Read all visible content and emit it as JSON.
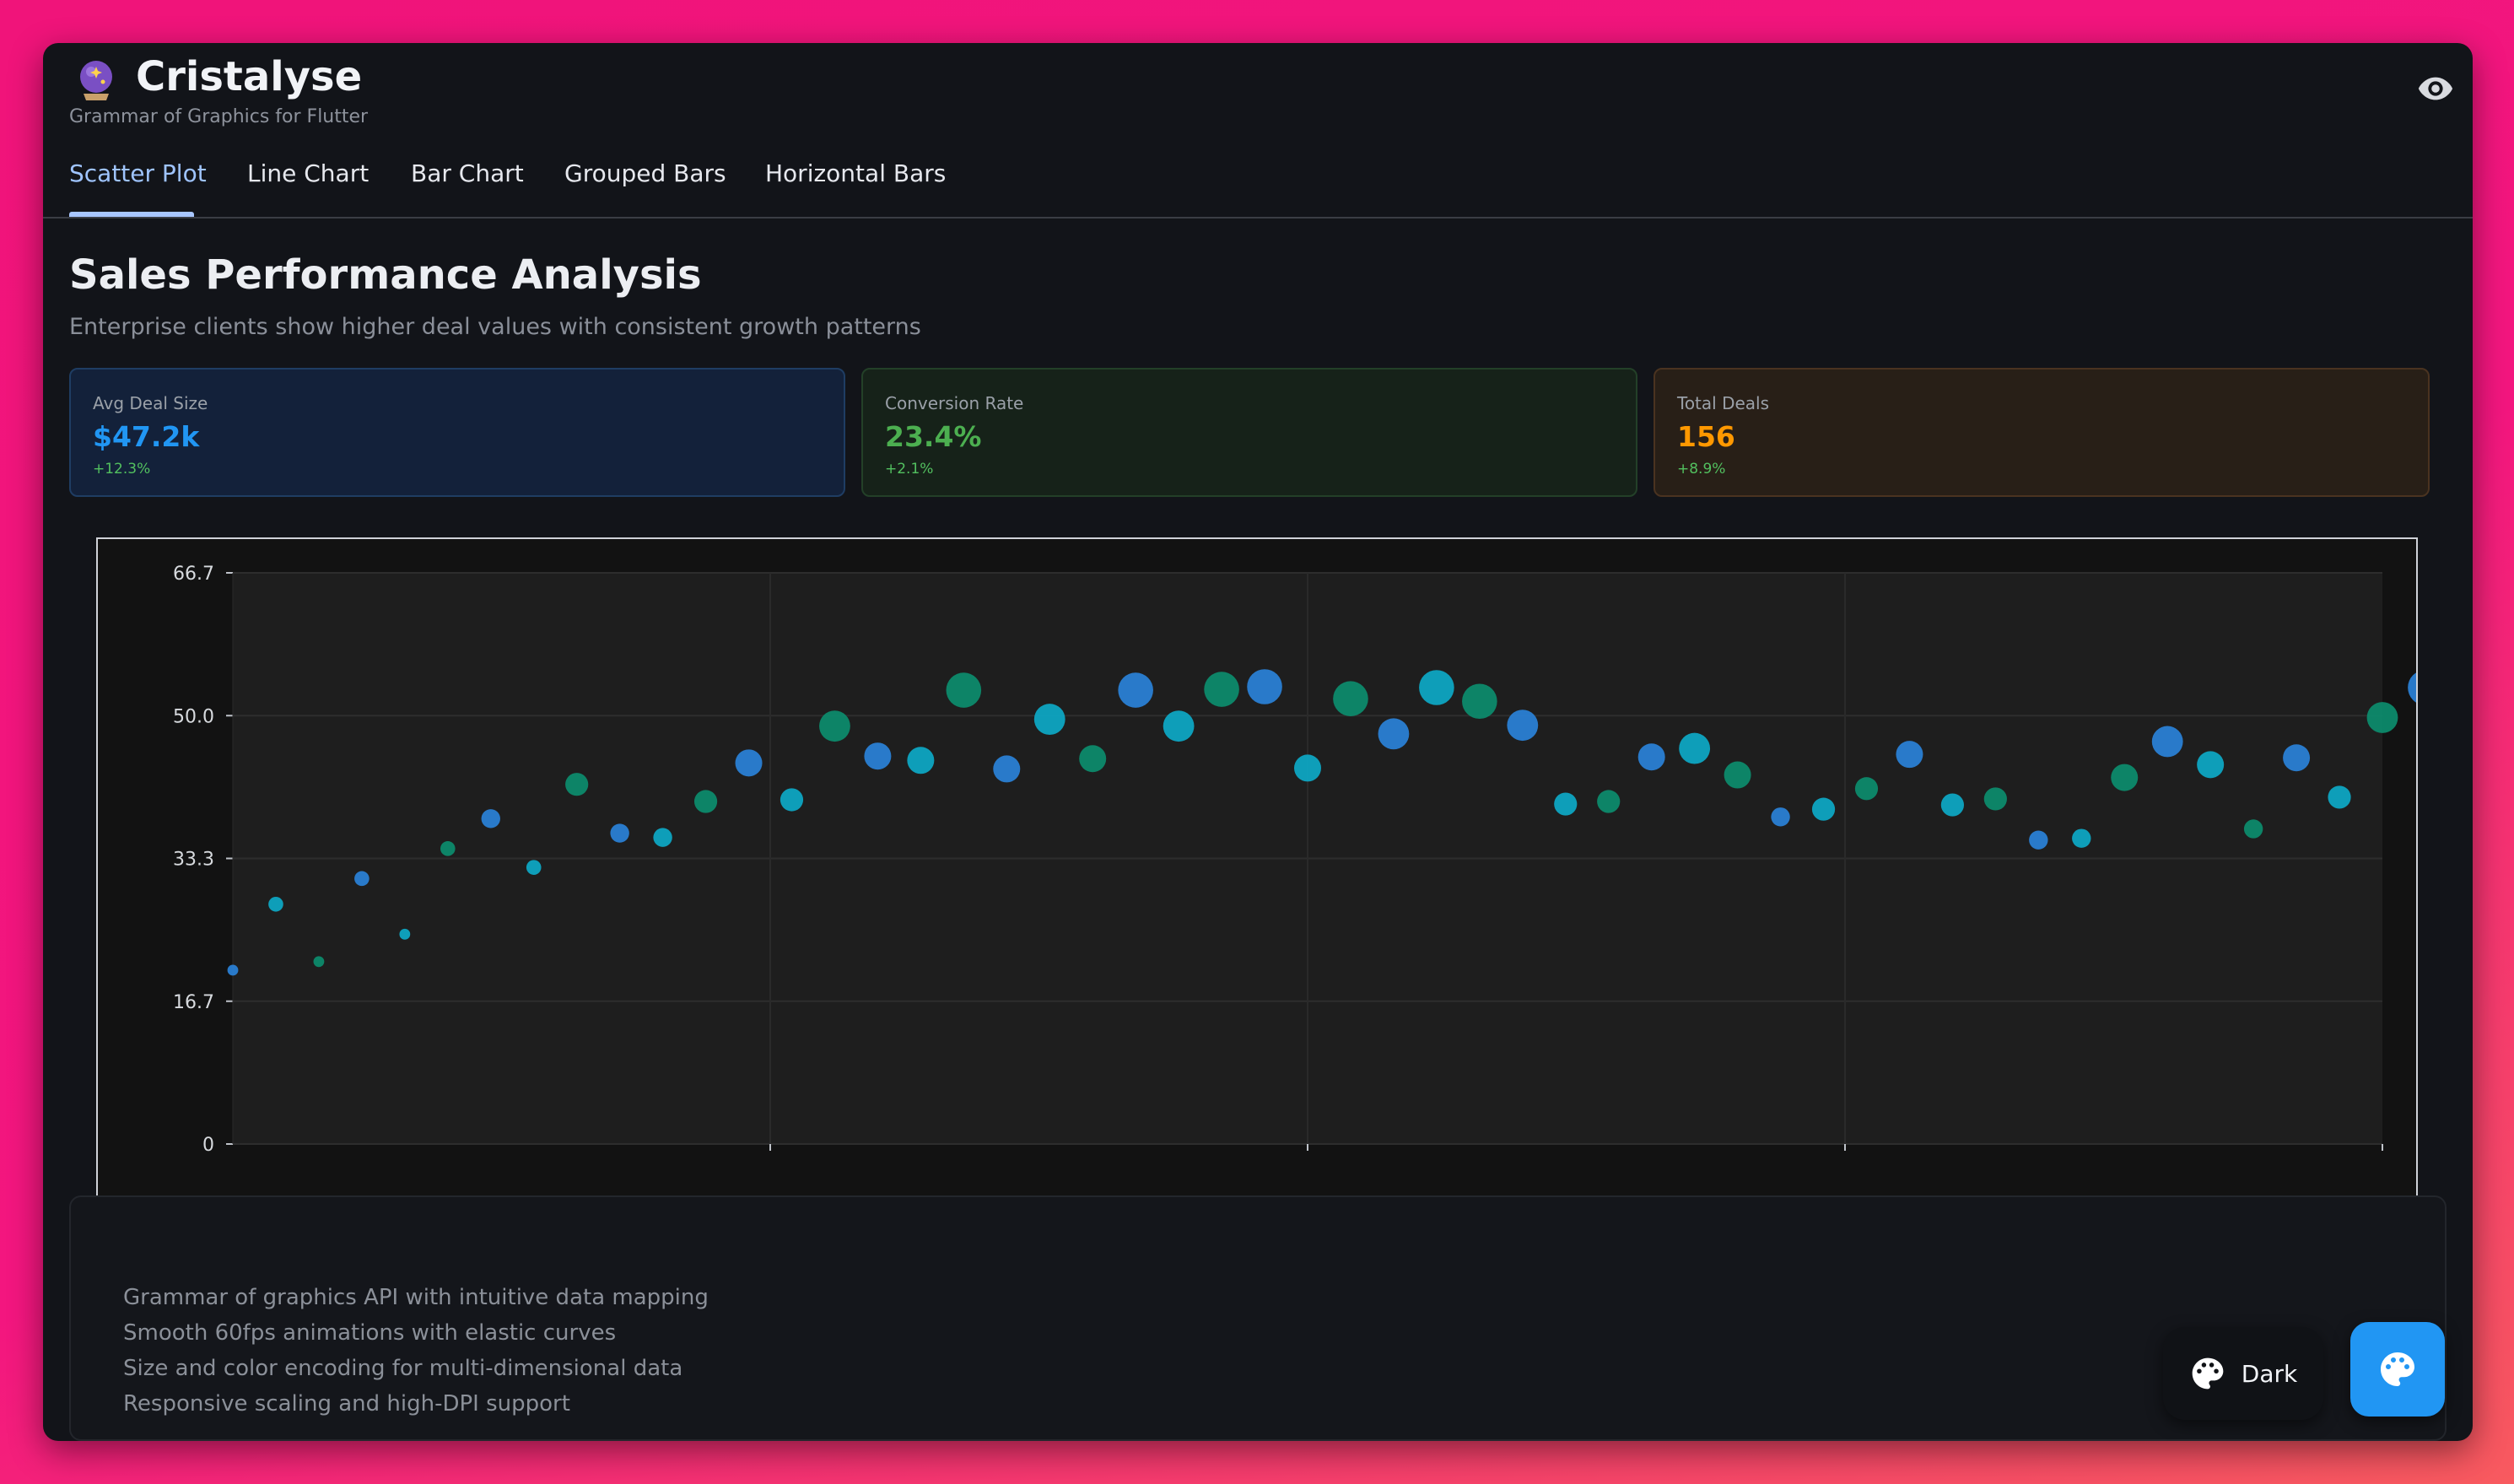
{
  "app": {
    "title": "Cristalyse",
    "subtitle": "Grammar of Graphics for Flutter",
    "icon": "crystal-ball-icon",
    "visibility_icon": "eye-icon"
  },
  "tabs": [
    {
      "label": "Scatter Plot",
      "active": true
    },
    {
      "label": "Line Chart",
      "active": false
    },
    {
      "label": "Bar Chart",
      "active": false
    },
    {
      "label": "Grouped Bars",
      "active": false
    },
    {
      "label": "Horizontal Bars",
      "active": false
    }
  ],
  "page": {
    "title": "Sales Performance Analysis",
    "subtitle": "Enterprise clients show higher deal values with consistent growth patterns"
  },
  "stats": [
    {
      "label": "Avg Deal Size",
      "value": "$47.2k",
      "change": "+12.3%",
      "color": "#2196f3"
    },
    {
      "label": "Conversion Rate",
      "value": "23.4%",
      "change": "+2.1%",
      "color": "#4caf50"
    },
    {
      "label": "Total Deals",
      "value": "156",
      "change": "+8.9%",
      "color": "#ff9800"
    }
  ],
  "chart_data": {
    "type": "scatter",
    "title": "",
    "xlabel": "",
    "ylabel": "",
    "ylim": [
      0,
      66.7
    ],
    "xlim": [
      0,
      50
    ],
    "yticks": [
      "66.7",
      "50.0",
      "33.3",
      "16.7",
      "0"
    ],
    "grid": true,
    "colors": {
      "blue": "#2a7fd4",
      "cyan": "#0ea5c2",
      "green": "#0d8a6c"
    },
    "points": [
      {
        "x": 0,
        "y": 20.3,
        "size": 1,
        "color": "blue"
      },
      {
        "x": 1,
        "y": 28,
        "size": 2,
        "color": "cyan"
      },
      {
        "x": 2,
        "y": 21.3,
        "size": 1,
        "color": "green"
      },
      {
        "x": 3,
        "y": 31,
        "size": 2,
        "color": "blue"
      },
      {
        "x": 4,
        "y": 24.5,
        "size": 1,
        "color": "cyan"
      },
      {
        "x": 5,
        "y": 34.5,
        "size": 2,
        "color": "green"
      },
      {
        "x": 6,
        "y": 38,
        "size": 3,
        "color": "blue"
      },
      {
        "x": 7,
        "y": 32.3,
        "size": 2,
        "color": "cyan"
      },
      {
        "x": 8,
        "y": 42,
        "size": 4,
        "color": "green"
      },
      {
        "x": 9,
        "y": 36.3,
        "size": 3,
        "color": "blue"
      },
      {
        "x": 10,
        "y": 35.8,
        "size": 3,
        "color": "cyan"
      },
      {
        "x": 11,
        "y": 40,
        "size": 4,
        "color": "green"
      },
      {
        "x": 12,
        "y": 44.5,
        "size": 5,
        "color": "blue"
      },
      {
        "x": 13,
        "y": 40.2,
        "size": 4,
        "color": "cyan"
      },
      {
        "x": 14,
        "y": 48.8,
        "size": 6,
        "color": "green"
      },
      {
        "x": 15,
        "y": 45.3,
        "size": 5,
        "color": "blue"
      },
      {
        "x": 16,
        "y": 44.8,
        "size": 5,
        "color": "cyan"
      },
      {
        "x": 17,
        "y": 53,
        "size": 7,
        "color": "green"
      },
      {
        "x": 18,
        "y": 43.8,
        "size": 5,
        "color": "blue"
      },
      {
        "x": 19,
        "y": 49.6,
        "size": 6,
        "color": "cyan"
      },
      {
        "x": 20,
        "y": 45,
        "size": 5,
        "color": "green"
      },
      {
        "x": 21,
        "y": 53,
        "size": 7,
        "color": "blue"
      },
      {
        "x": 22,
        "y": 48.8,
        "size": 6,
        "color": "cyan"
      },
      {
        "x": 23,
        "y": 53.1,
        "size": 7,
        "color": "green"
      },
      {
        "x": 24,
        "y": 53.4,
        "size": 7,
        "color": "blue"
      },
      {
        "x": 25,
        "y": 43.9,
        "size": 5,
        "color": "cyan"
      },
      {
        "x": 26,
        "y": 52,
        "size": 7,
        "color": "green"
      },
      {
        "x": 27,
        "y": 47.9,
        "size": 6,
        "color": "blue"
      },
      {
        "x": 28,
        "y": 53.3,
        "size": 7,
        "color": "cyan"
      },
      {
        "x": 29,
        "y": 51.7,
        "size": 7,
        "color": "green"
      },
      {
        "x": 30,
        "y": 48.9,
        "size": 6,
        "color": "blue"
      },
      {
        "x": 31,
        "y": 39.7,
        "size": 4,
        "color": "cyan"
      },
      {
        "x": 32,
        "y": 40,
        "size": 4,
        "color": "green"
      },
      {
        "x": 33,
        "y": 45.2,
        "size": 5,
        "color": "blue"
      },
      {
        "x": 34,
        "y": 46.2,
        "size": 6,
        "color": "cyan"
      },
      {
        "x": 35,
        "y": 43.1,
        "size": 5,
        "color": "green"
      },
      {
        "x": 36,
        "y": 38.2,
        "size": 3,
        "color": "blue"
      },
      {
        "x": 37,
        "y": 39.1,
        "size": 4,
        "color": "cyan"
      },
      {
        "x": 38,
        "y": 41.5,
        "size": 4,
        "color": "green"
      },
      {
        "x": 39,
        "y": 45.5,
        "size": 5,
        "color": "blue"
      },
      {
        "x": 40,
        "y": 39.6,
        "size": 4,
        "color": "cyan"
      },
      {
        "x": 41,
        "y": 40.3,
        "size": 4,
        "color": "green"
      },
      {
        "x": 42,
        "y": 35.5,
        "size": 3,
        "color": "blue"
      },
      {
        "x": 43,
        "y": 35.7,
        "size": 3,
        "color": "cyan"
      },
      {
        "x": 44,
        "y": 42.8,
        "size": 5,
        "color": "green"
      },
      {
        "x": 45,
        "y": 47,
        "size": 6,
        "color": "blue"
      },
      {
        "x": 46,
        "y": 44.3,
        "size": 5,
        "color": "cyan"
      },
      {
        "x": 47,
        "y": 36.8,
        "size": 3,
        "color": "green"
      },
      {
        "x": 48,
        "y": 45.1,
        "size": 5,
        "color": "blue"
      },
      {
        "x": 49,
        "y": 40.5,
        "size": 4,
        "color": "cyan"
      },
      {
        "x": 50,
        "y": 49.8,
        "size": 6,
        "color": "green"
      },
      {
        "x": 51,
        "y": 53.3,
        "size": 7,
        "color": "blue"
      }
    ]
  },
  "features": [
    "Grammar of graphics API with intuitive data mapping",
    "Smooth 60fps animations with elastic curves",
    "Size and color encoding for multi-dimensional data",
    "Responsive scaling and high-DPI support"
  ],
  "theme_button": {
    "label": "Dark",
    "icon": "palette-icon"
  },
  "fab": {
    "icon": "palette-icon",
    "color": "#2196f3"
  }
}
